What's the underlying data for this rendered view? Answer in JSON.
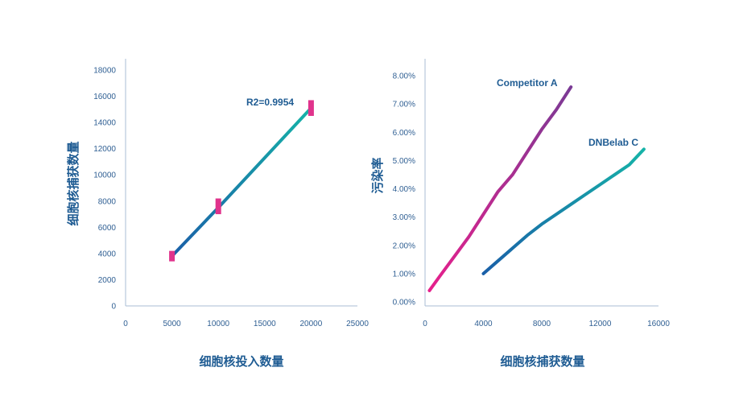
{
  "chart_data": [
    {
      "type": "line",
      "xlabel": "细胞核投入数量",
      "ylabel": "细胞核捕获数量",
      "xlim": [
        0,
        25000
      ],
      "ylim": [
        0,
        18000
      ],
      "x_ticks": [
        0,
        5000,
        10000,
        15000,
        20000,
        25000
      ],
      "y_ticks": [
        0,
        2000,
        4000,
        6000,
        8000,
        10000,
        12000,
        14000,
        16000,
        18000
      ],
      "x_tick_labels": [
        "0",
        "5000",
        "10000",
        "15000",
        "20000",
        "25000"
      ],
      "y_tick_labels": [
        "0",
        "2000",
        "4000",
        "6000",
        "8000",
        "10000",
        "12000",
        "14000",
        "16000",
        "18000"
      ],
      "series": [
        {
          "x": [
            5000,
            10000,
            20000
          ],
          "y": [
            3800,
            7500,
            15100
          ]
        }
      ],
      "error_bars": [
        {
          "x": 5000,
          "low": 3400,
          "high": 4200
        },
        {
          "x": 10000,
          "low": 7000,
          "high": 8200
        },
        {
          "x": 20000,
          "low": 14500,
          "high": 15700
        }
      ],
      "annotations": [
        {
          "text": "R2=0.9954"
        }
      ],
      "colors": {
        "line_start": "#1a5fa8",
        "line_end": "#16b3a8",
        "error_bar": "#e0338c",
        "axis": "#a9bdd6"
      },
      "grid": false,
      "legend": "none"
    },
    {
      "type": "line",
      "xlabel": "细胞核捕获数量",
      "ylabel": "污染率",
      "xlim": [
        0,
        16000
      ],
      "ylim": [
        0,
        8
      ],
      "x_ticks": [
        0,
        4000,
        8000,
        12000,
        16000
      ],
      "y_ticks": [
        0,
        1,
        2,
        3,
        4,
        5,
        6,
        7,
        8
      ],
      "x_tick_labels": [
        "0",
        "4000",
        "8000",
        "12000",
        "16000"
      ],
      "y_tick_labels": [
        "0.00%",
        "1.00%",
        "2.00%",
        "3.00%",
        "4.00%",
        "5.00%",
        "6.00%",
        "7.00%",
        "8.00%"
      ],
      "series": [
        {
          "name": "Competitor A",
          "x": [
            300,
            1000,
            2000,
            3000,
            4000,
            5000,
            6000,
            7000,
            8000,
            9000,
            10000
          ],
          "y": [
            0.4,
            0.9,
            1.6,
            2.3,
            3.1,
            3.9,
            4.5,
            5.3,
            6.1,
            6.8,
            7.6
          ],
          "color_start": "#e6208c",
          "color_end": "#7a3a95"
        },
        {
          "name": "DNBelab C",
          "x": [
            4000,
            5000,
            6000,
            7000,
            8000,
            9000,
            10000,
            11000,
            12000,
            13000,
            14000,
            15000
          ],
          "y": [
            1.0,
            1.45,
            1.9,
            2.35,
            2.75,
            3.1,
            3.45,
            3.8,
            4.15,
            4.5,
            4.85,
            5.4
          ],
          "color_start": "#1a5fa8",
          "color_end": "#16b3a8"
        }
      ],
      "colors": {
        "axis": "#a9bdd6"
      },
      "grid": false,
      "legend": "inline-labels"
    }
  ]
}
